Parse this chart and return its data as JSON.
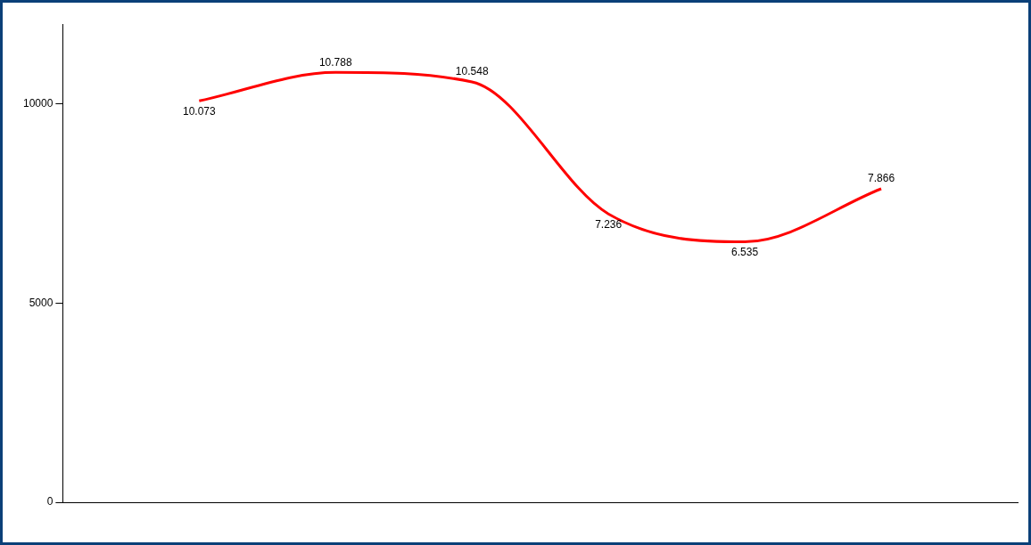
{
  "chart_data": {
    "type": "line",
    "categories": [
      null,
      null,
      null,
      null,
      null,
      null
    ],
    "series": [
      {
        "color": "#ff0000",
        "values": [
          10073,
          10788,
          10548,
          7236,
          6535,
          7866
        ],
        "value_labels": [
          "10.073",
          "10.788",
          "10.548",
          "7.236",
          "6.535",
          "7.866"
        ]
      }
    ],
    "ylim": [
      0,
      12000
    ],
    "yticks": [
      0,
      5000,
      10000
    ],
    "grid": false,
    "legend": false,
    "tick_labels": "y",
    "marker": "none",
    "line_style": "solid"
  }
}
